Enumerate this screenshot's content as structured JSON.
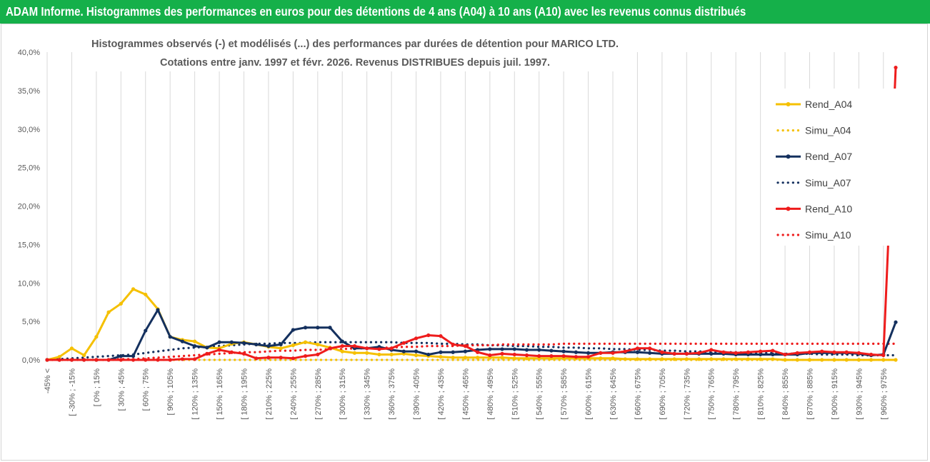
{
  "header": {
    "title": "ADAM Informe. Histogrammes des performances en euros pour des détentions de 4 ans (A04) à 10 ans (A10) avec les revenus connus distribués"
  },
  "colors": {
    "header_bg": "#15b04a",
    "A04": "#f5c000",
    "A07": "#14305e",
    "A10": "#ee1c1c"
  },
  "chart_data": {
    "type": "line",
    "title_lines": [
      "Histogrammes observés (-) et modélisés (...) des performances par durées de détention pour MARICO LTD.",
      "Cotations entre janv. 1997 et févr. 2026. Revenus DISTRIBUES depuis juil. 1997."
    ],
    "xlabel": "",
    "ylabel": "",
    "ylim": [
      0,
      40
    ],
    "yticks": [
      "0,0%",
      "5,0%",
      "10,0%",
      "15,0%",
      "20,0%",
      "25,0%",
      "30,0%",
      "35,0%",
      "40,0%"
    ],
    "grid": "vertical",
    "legend_position": "right",
    "x_tick_labels": [
      "-45% <",
      "[ -30% ; -15%",
      "[ 0% ; 15%",
      "[ 30% ; 45%",
      "[ 60% ; 75%",
      "[ 90% ; 105%",
      "[ 120% ; 135%",
      "[ 150% ; 165%",
      "[ 180% ; 195%",
      "[ 210% ; 225%",
      "[ 240% ; 255%",
      "[ 270% ; 285%",
      "[ 300% ; 315%",
      "[ 330% ; 345%",
      "[ 360% ; 375%",
      "[ 390% ; 405%",
      "[ 420% ; 435%",
      "[ 450% ; 465%",
      "[ 480% ; 495%",
      "[ 510% ; 525%",
      "[ 540% ; 555%",
      "[ 570% ; 585%",
      "[ 600% ; 615%",
      "[ 630% ; 645%",
      "[ 660% ; 675%",
      "[ 690% ; 705%",
      "[ 720% ; 735%",
      "[ 750% ; 765%",
      "[ 780% ; 795%",
      "[ 810% ; 825%",
      "[ 840% ; 855%",
      "[ 870% ; 885%",
      "[ 900% ; 915%",
      "[ 930% ; 945%",
      "[ 960% ; 975%"
    ],
    "series": [
      {
        "name": "Rend_A04",
        "style": "solid",
        "color": "#f5c000",
        "values": [
          0.0,
          0.4,
          1.5,
          0.6,
          3.0,
          6.2,
          7.3,
          9.2,
          8.5,
          6.6,
          3.0,
          2.6,
          2.4,
          1.6,
          1.5,
          2.1,
          2.3,
          2.0,
          1.7,
          1.5,
          1.9,
          2.3,
          2.0,
          1.6,
          1.1,
          0.9,
          0.9,
          0.7,
          0.7,
          0.8,
          0.6,
          0.5,
          0.4,
          0.3,
          0.3,
          0.3,
          0.3,
          0.3,
          0.2,
          0.2,
          0.2,
          0.2,
          0.2,
          0.2,
          0.2,
          0.2,
          0.2,
          0.1,
          0.1,
          0.1,
          0.1,
          0.1,
          0.1,
          0.1,
          0.1,
          0.1,
          0.1,
          0.1,
          0.1,
          0.1,
          0.0,
          0.0,
          0.0,
          0.0,
          0.0,
          0.0,
          0.0,
          0.0,
          0.0,
          0.0
        ]
      },
      {
        "name": "Simu_A04",
        "style": "dotted",
        "color": "#f5c000",
        "values": [
          0.0,
          0.0,
          0.0,
          0.0,
          0.0,
          0.0,
          0.0,
          0.0,
          0.0,
          0.0,
          0.0,
          0.0,
          0.0,
          0.0,
          0.0,
          0.0,
          0.0,
          0.0,
          0.0,
          0.0,
          0.0,
          0.0,
          0.0,
          0.0,
          0.0,
          0.0,
          0.0,
          0.0,
          0.0,
          0.0,
          0.0,
          0.0,
          0.0,
          0.0,
          0.0,
          0.0,
          0.0,
          0.0,
          0.0,
          0.0,
          0.0,
          0.0,
          0.0,
          0.0,
          0.0,
          0.0,
          0.0,
          0.0,
          0.0,
          0.0,
          0.0,
          0.0,
          0.0,
          0.0,
          0.0,
          0.0,
          0.0,
          0.0,
          0.0,
          0.0,
          0.0,
          0.0,
          0.0,
          0.0,
          0.0,
          0.0,
          0.0,
          0.0,
          0.0,
          0.0
        ]
      },
      {
        "name": "Rend_A07",
        "style": "solid",
        "color": "#14305e",
        "values": [
          0.0,
          0.0,
          0.0,
          0.0,
          0.0,
          0.0,
          0.5,
          0.5,
          3.8,
          6.5,
          3.0,
          2.4,
          1.8,
          1.6,
          2.3,
          2.3,
          2.2,
          2.0,
          1.8,
          2.0,
          3.9,
          4.2,
          4.2,
          4.2,
          2.4,
          1.5,
          1.5,
          1.7,
          1.3,
          1.1,
          1.1,
          0.7,
          1.0,
          1.0,
          1.1,
          1.3,
          1.4,
          1.4,
          1.4,
          1.3,
          1.3,
          1.2,
          1.1,
          1.0,
          0.9,
          0.9,
          1.0,
          1.0,
          1.0,
          0.9,
          0.8,
          0.8,
          0.8,
          0.8,
          0.8,
          0.8,
          0.7,
          0.7,
          0.7,
          0.7,
          0.7,
          0.7,
          0.9,
          0.9,
          0.9,
          0.9,
          0.8,
          0.6,
          0.7,
          4.9
        ]
      },
      {
        "name": "Simu_A07",
        "style": "dotted",
        "color": "#14305e",
        "values": [
          0.0,
          0.1,
          0.2,
          0.3,
          0.4,
          0.5,
          0.6,
          0.7,
          0.9,
          1.1,
          1.3,
          1.5,
          1.6,
          1.7,
          1.8,
          1.9,
          2.0,
          2.1,
          2.1,
          2.2,
          2.2,
          2.2,
          2.3,
          2.3,
          2.3,
          2.3,
          2.3,
          2.3,
          2.3,
          2.2,
          2.2,
          2.2,
          2.1,
          2.1,
          2.0,
          2.0,
          1.9,
          1.9,
          1.8,
          1.8,
          1.7,
          1.7,
          1.6,
          1.6,
          1.5,
          1.5,
          1.4,
          1.4,
          1.3,
          1.3,
          1.2,
          1.2,
          1.1,
          1.1,
          1.0,
          1.0,
          1.0,
          0.9,
          0.9,
          0.9,
          0.8,
          0.8,
          0.8,
          0.7,
          0.7,
          0.7,
          0.6,
          0.6,
          0.6,
          0.6
        ]
      },
      {
        "name": "Rend_A10",
        "style": "solid",
        "color": "#ee1c1c",
        "values": [
          0.0,
          0.0,
          0.0,
          0.0,
          0.0,
          0.0,
          0.0,
          0.0,
          0.0,
          0.0,
          0.0,
          0.1,
          0.1,
          0.8,
          1.3,
          1.0,
          0.8,
          0.2,
          0.3,
          0.3,
          0.2,
          0.5,
          0.7,
          1.5,
          1.8,
          1.8,
          1.5,
          1.4,
          1.5,
          2.2,
          2.8,
          3.2,
          3.1,
          2.0,
          1.8,
          1.0,
          0.6,
          0.8,
          0.7,
          0.6,
          0.5,
          0.5,
          0.5,
          0.4,
          0.4,
          0.9,
          0.9,
          1.1,
          1.5,
          1.5,
          1.0,
          0.8,
          0.8,
          0.9,
          1.3,
          1.0,
          0.9,
          1.0,
          1.1,
          1.2,
          0.7,
          0.9,
          1.0,
          1.1,
          1.0,
          1.0,
          0.9,
          0.7,
          0.6,
          38.0
        ]
      },
      {
        "name": "Simu_A10",
        "style": "dotted",
        "color": "#ee1c1c",
        "values": [
          0.0,
          0.0,
          0.0,
          0.0,
          0.0,
          0.0,
          0.1,
          0.1,
          0.2,
          0.3,
          0.4,
          0.5,
          0.6,
          0.7,
          0.8,
          0.9,
          1.0,
          1.0,
          1.1,
          1.2,
          1.2,
          1.3,
          1.3,
          1.4,
          1.4,
          1.5,
          1.5,
          1.6,
          1.6,
          1.7,
          1.7,
          1.8,
          1.8,
          1.8,
          1.9,
          1.9,
          1.9,
          2.0,
          2.0,
          2.0,
          2.0,
          2.0,
          2.1,
          2.1,
          2.1,
          2.1,
          2.1,
          2.1,
          2.1,
          2.1,
          2.1,
          2.1,
          2.1,
          2.1,
          2.1,
          2.1,
          2.1,
          2.1,
          2.1,
          2.1,
          2.1,
          2.1,
          2.1,
          2.1,
          2.1,
          2.1,
          2.1,
          2.1,
          2.1,
          2.1
        ]
      }
    ]
  }
}
